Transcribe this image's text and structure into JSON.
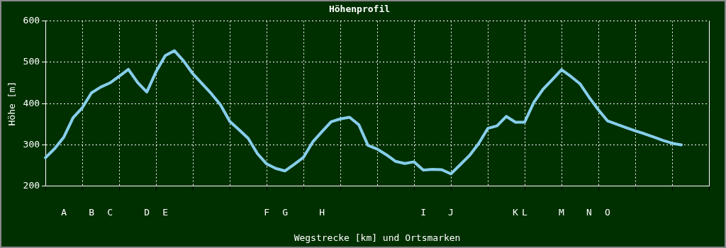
{
  "chart_data": {
    "type": "line",
    "title": "Höhenprofil",
    "xlabel": "Wegstrecke [km] und Ortsmarken",
    "ylabel": "Höhe [m]",
    "categories": [
      null,
      null,
      "A",
      null,
      null,
      "B",
      null,
      "C",
      null,
      null,
      null,
      "D",
      null,
      "E",
      null,
      null,
      null,
      null,
      null,
      null,
      null,
      null,
      null,
      null,
      "F",
      null,
      "G",
      null,
      null,
      null,
      "H",
      null,
      null,
      null,
      null,
      null,
      null,
      null,
      null,
      null,
      null,
      "I",
      null,
      null,
      "J",
      null,
      null,
      null,
      null,
      null,
      null,
      "K",
      "L",
      null,
      null,
      null,
      "M",
      null,
      null,
      "N",
      null,
      "O",
      null,
      null,
      null,
      null,
      null,
      null,
      null,
      null,
      null,
      null,
      null
    ],
    "series": [
      {
        "color": "#87ceeb",
        "values": [
          269,
          291,
          319,
          366,
          390,
          426,
          440,
          450,
          466,
          483,
          451,
          428,
          477,
          516,
          528,
          503,
          472,
          448,
          424,
          397,
          357,
          337,
          316,
          279,
          254,
          243,
          237,
          253,
          270,
          307,
          332,
          356,
          363,
          367,
          349,
          299,
          290,
          276,
          260,
          255,
          259,
          239,
          241,
          240,
          230,
          252,
          274,
          303,
          340,
          346,
          369,
          355,
          355,
          403,
          435,
          458,
          482,
          466,
          448,
          415,
          385,
          358,
          350,
          342,
          334,
          327,
          319,
          311,
          304,
          300,
          null,
          null,
          null
        ]
      }
    ],
    "ylim": [
      200,
      600
    ],
    "yticks": [
      200,
      300,
      400,
      500,
      600
    ],
    "grid": true,
    "legend": false,
    "marker": "none",
    "line_style": "solid"
  }
}
